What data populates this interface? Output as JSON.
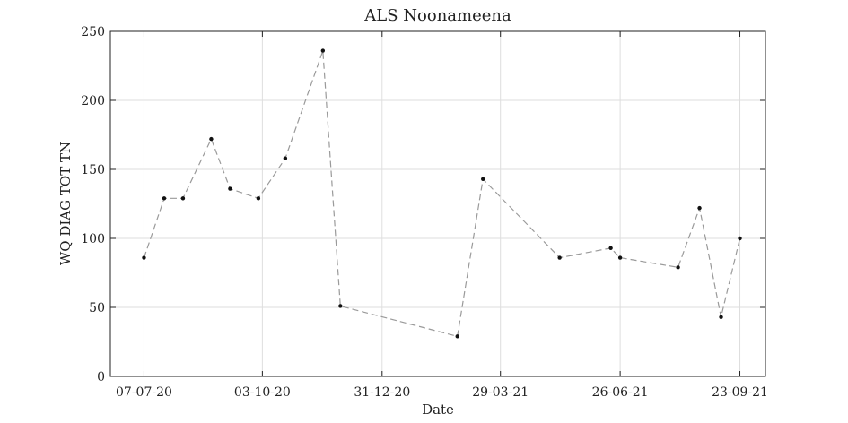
{
  "chart_data": {
    "type": "line",
    "title": "ALS Noonameena",
    "xlabel": "Date",
    "ylabel": "WQ DIAG TOT TN",
    "ylim": [
      0,
      250
    ],
    "xlim": [
      "2020-06-12",
      "2021-10-12"
    ],
    "yticks": [
      0,
      50,
      100,
      150,
      200,
      250
    ],
    "xticks": [
      {
        "date": "2020-07-07",
        "label": "07-07-20"
      },
      {
        "date": "2020-10-03",
        "label": "03-10-20"
      },
      {
        "date": "2020-12-31",
        "label": "31-12-20"
      },
      {
        "date": "2021-03-29",
        "label": "29-03-21"
      },
      {
        "date": "2021-06-26",
        "label": "26-06-21"
      },
      {
        "date": "2021-09-23",
        "label": "23-09-21"
      }
    ],
    "grid": true,
    "line_style": "dashed",
    "colors": {
      "line": "#9a9a9a",
      "marker": "#111111",
      "grid": "#dedede",
      "axis": "#222222"
    },
    "series": [
      {
        "points": [
          {
            "x": "2020-07-07",
            "y": 86
          },
          {
            "x": "2020-07-22",
            "y": 129
          },
          {
            "x": "2020-08-05",
            "y": 129
          },
          {
            "x": "2020-08-26",
            "y": 172
          },
          {
            "x": "2020-09-09",
            "y": 136
          },
          {
            "x": "2020-09-30",
            "y": 129
          },
          {
            "x": "2020-10-20",
            "y": 158
          },
          {
            "x": "2020-11-17",
            "y": 236
          },
          {
            "x": "2020-11-30",
            "y": 51
          },
          {
            "x": "2021-02-25",
            "y": 29
          },
          {
            "x": "2021-03-16",
            "y": 143
          },
          {
            "x": "2021-05-12",
            "y": 86
          },
          {
            "x": "2021-06-19",
            "y": 93
          },
          {
            "x": "2021-06-26",
            "y": 86
          },
          {
            "x": "2021-08-08",
            "y": 79
          },
          {
            "x": "2021-08-24",
            "y": 122
          },
          {
            "x": "2021-09-09",
            "y": 43
          },
          {
            "x": "2021-09-23",
            "y": 100
          }
        ]
      }
    ]
  }
}
